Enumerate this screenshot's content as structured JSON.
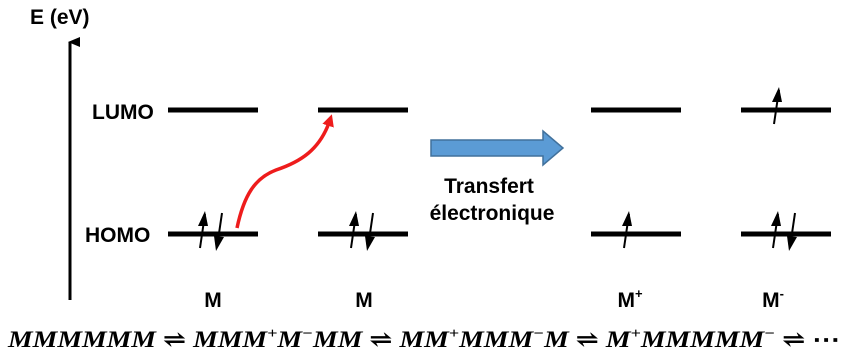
{
  "axis": {
    "label": "E (eV)"
  },
  "levels": {
    "lumo_label": "LUMO",
    "homo_label": "HOMO"
  },
  "molecules": [
    {
      "name": "M",
      "superscript": ""
    },
    {
      "name": "M",
      "superscript": ""
    },
    {
      "name": "M",
      "superscript": "+"
    },
    {
      "name": "M",
      "superscript": "-"
    }
  ],
  "transfer": {
    "line1": "Transfert",
    "line2": "électronique",
    "color": "#5b9bd5"
  },
  "excitation_arrow_color": "#ee1c1c",
  "equation": {
    "terms": [
      [
        {
          "t": "MMMMMM"
        }
      ],
      [
        {
          "t": "MMM"
        },
        {
          "t": "+",
          "sup": true
        },
        {
          "t": "M"
        },
        {
          "t": "−",
          "sup": true
        },
        {
          "t": "MM"
        }
      ],
      [
        {
          "t": "MM"
        },
        {
          "t": "+",
          "sup": true
        },
        {
          "t": "MMM"
        },
        {
          "t": "−",
          "sup": true
        },
        {
          "t": "M"
        }
      ],
      [
        {
          "t": "M"
        },
        {
          "t": "+",
          "sup": true
        },
        {
          "t": "MMMMM"
        },
        {
          "t": "−",
          "sup": true
        }
      ]
    ],
    "equilibrium_symbol": "⇌",
    "ellipsis": "⋯"
  }
}
